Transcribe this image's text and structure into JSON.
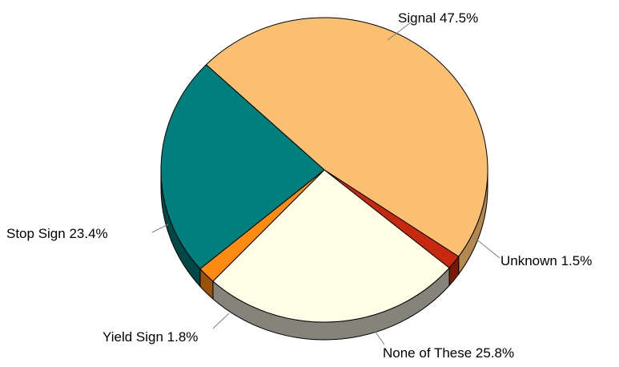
{
  "chart_data": {
    "type": "pie",
    "title": "",
    "style": "3d-tilted",
    "slices": [
      {
        "label": "Signal",
        "value_text": "47.5%",
        "value": 47.5,
        "color": "#FBBF72",
        "side_color": "#B38950"
      },
      {
        "label": "Unknown",
        "value_text": "1.5%",
        "value": 1.5,
        "color": "#C8290E",
        "side_color": "#7A1808"
      },
      {
        "label": "None of These",
        "value_text": "25.8%",
        "value": 25.8,
        "color": "#FEFDE5",
        "side_color": "#85847A"
      },
      {
        "label": "Yield Sign",
        "value_text": "1.8%",
        "value": 1.8,
        "color": "#FF8A12",
        "side_color": "#9A520A"
      },
      {
        "label": "Stop Sign",
        "value_text": "23.4%",
        "value": 23.4,
        "color": "#007F7F",
        "side_color": "#004848"
      }
    ]
  }
}
